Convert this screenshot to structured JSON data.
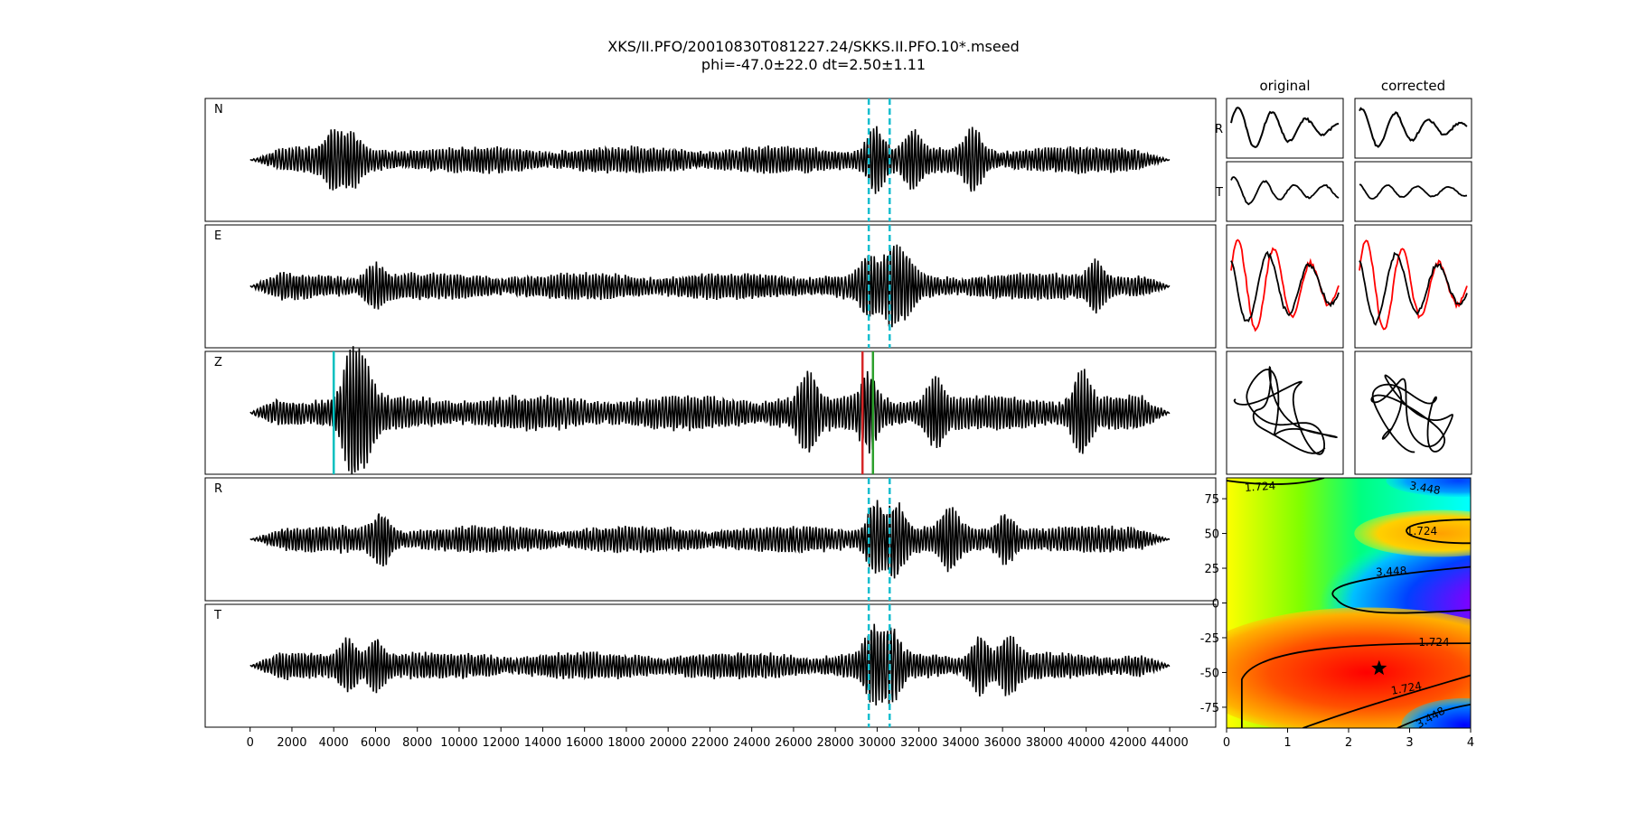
{
  "figure": {
    "title_line1": "XKS/II.PFO/20010830T081227.24/SKKS.II.PFO.10*.mseed",
    "title_line2": "phi=-47.0±22.0 dt=2.50±1.11",
    "col_original": "original",
    "col_corrected": "corrected"
  },
  "chart_data": [
    {
      "type": "line",
      "name": "seismogram traces",
      "traces": [
        "N",
        "E",
        "Z",
        "R",
        "T"
      ],
      "x_ticks": [
        0,
        2000,
        4000,
        6000,
        8000,
        10000,
        12000,
        14000,
        16000,
        18000,
        20000,
        22000,
        24000,
        26000,
        28000,
        30000,
        32000,
        34000,
        36000,
        38000,
        40000,
        42000,
        44000
      ],
      "xlim": [
        -2150,
        46200
      ],
      "trace_span": [
        0,
        44000
      ],
      "window_lines": {
        "color": "#17becf",
        "style": "dashed",
        "x": [
          29600,
          30600
        ],
        "on_traces": [
          "N",
          "E",
          "R",
          "T"
        ]
      },
      "picks": [
        {
          "trace": "Z",
          "x": 4000,
          "color": "#00bfbf"
        },
        {
          "trace": "Z",
          "x": 29300,
          "color": "#d62728"
        },
        {
          "trace": "Z",
          "x": 29800,
          "color": "#2ca02c"
        }
      ],
      "grid": false
    },
    {
      "type": "line",
      "name": "particle motion panels",
      "rows": [
        "R",
        "T",
        "",
        ""
      ],
      "columns": [
        "original",
        "corrected"
      ],
      "overlay_colors": [
        "#ff0000",
        "#000000"
      ]
    },
    {
      "type": "heatmap",
      "name": "error surface",
      "colormap": "rainbow",
      "xlim": [
        0,
        4
      ],
      "ylim": [
        -90,
        90
      ],
      "x_ticks": [
        0,
        1,
        2,
        3,
        4
      ],
      "y_ticks": [
        75,
        50,
        25,
        0,
        -25,
        -50,
        -75
      ],
      "contour_labels": [
        "1.724",
        "3.448",
        "1.724",
        "3.448",
        "1.724",
        "1.724",
        "3.448"
      ],
      "best_fit": {
        "x": 2.5,
        "y": -47.0,
        "marker": "star"
      }
    }
  ],
  "colors": {
    "window": "#17becf",
    "pick_cyan": "#00bfbf",
    "pick_red": "#d62728",
    "pick_green": "#2ca02c"
  }
}
